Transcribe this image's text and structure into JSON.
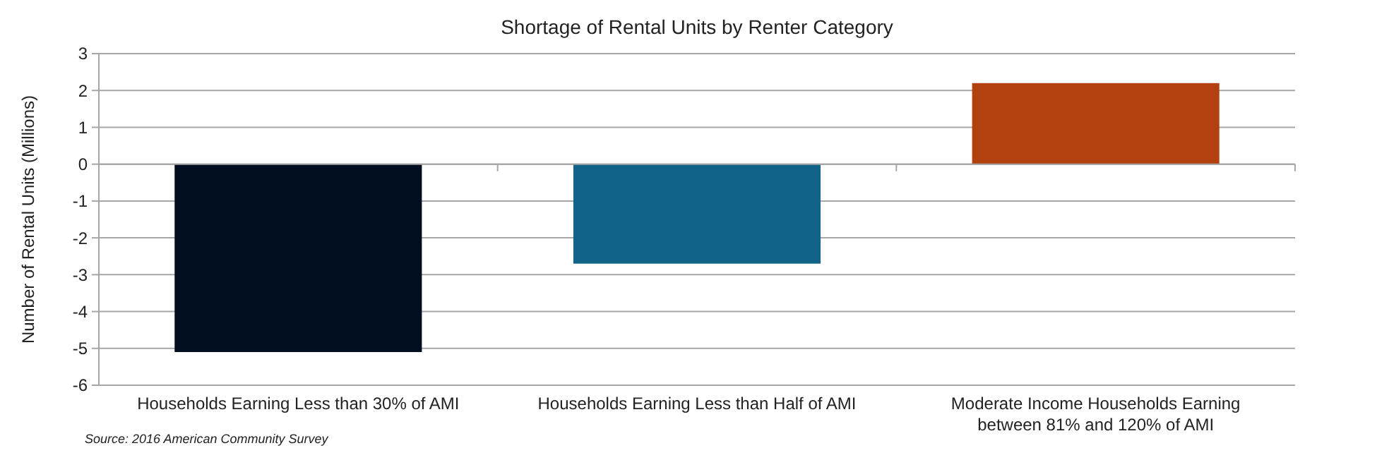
{
  "chart_data": {
    "type": "bar",
    "title": "Shortage of Rental Units by Renter Category",
    "ylabel": "Number of  Rental Units (Millions)",
    "categories": [
      "Households Earning Less than 30% of AMI",
      "Households Earning Less than Half of AMI",
      "Moderate Income Households Earning between 81% and 120% of AMI"
    ],
    "values": [
      -5.1,
      -2.7,
      2.2
    ],
    "colors": [
      "#000e20",
      "#11638a",
      "#b3400f"
    ],
    "ylim": [
      -6,
      3
    ],
    "yticks": [
      {
        "value": -6,
        "label": "-6"
      },
      {
        "value": -5,
        "label": "-5"
      },
      {
        "value": -4,
        "label": "-4"
      },
      {
        "value": -3,
        "label": "-3"
      },
      {
        "value": -2,
        "label": "-2"
      },
      {
        "value": -1,
        "label": "-1"
      },
      0,
      1,
      2,
      3
    ],
    "grid": "y",
    "annotations": [
      "Source:  2016 American Community Survey"
    ]
  }
}
